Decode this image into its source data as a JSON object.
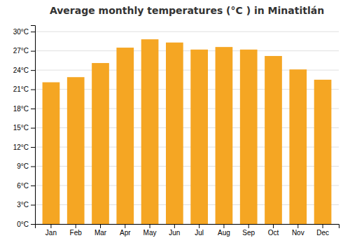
{
  "chart_data": {
    "type": "bar",
    "title": "Average monthly temperatures (°C ) in Minatitlán",
    "categories": [
      "Jan",
      "Feb",
      "Mar",
      "Apr",
      "May",
      "Jun",
      "Jul",
      "Aug",
      "Sep",
      "Oct",
      "Nov",
      "Dec"
    ],
    "values": [
      22.1,
      22.9,
      25.1,
      27.5,
      28.8,
      28.3,
      27.2,
      27.6,
      27.2,
      26.2,
      24.1,
      22.5
    ],
    "color": "#F5A623",
    "ylim": [
      0,
      31
    ],
    "yticks": [
      {
        "value": 0,
        "label": "0°C"
      },
      {
        "value": 3,
        "label": "3°C"
      },
      {
        "value": 6,
        "label": "6°C"
      },
      {
        "value": 9,
        "label": "9°C"
      },
      {
        "value": 12,
        "label": "12°C"
      },
      {
        "value": 15,
        "label": "15°C"
      },
      {
        "value": 18,
        "label": "18°C"
      },
      {
        "value": 21,
        "label": "21°C"
      },
      {
        "value": 24,
        "label": "24°C"
      },
      {
        "value": 27,
        "label": "27°C"
      },
      {
        "value": 30,
        "label": "30°C"
      }
    ],
    "grid": true
  }
}
